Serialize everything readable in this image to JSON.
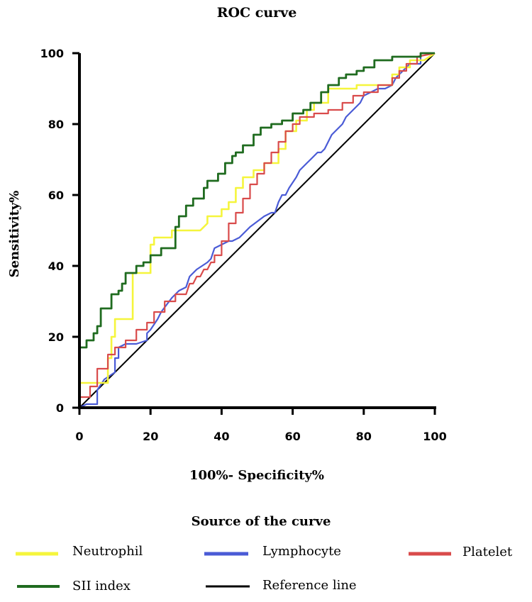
{
  "chart_data": {
    "type": "line",
    "title": "ROC curve",
    "xlabel": "100%- Specificity%",
    "ylabel": "Sensitivity%",
    "xlim": [
      0,
      100
    ],
    "ylim": [
      0,
      100
    ],
    "x_ticks": [
      "0",
      "20",
      "40",
      "60",
      "80",
      "100"
    ],
    "y_ticks": [
      "0",
      "20",
      "40",
      "60",
      "80",
      "100"
    ],
    "grid": false,
    "legend_title": "Source of the curve",
    "legend_position": "bottom",
    "series": [
      {
        "name": "Neutrophil",
        "color": "#f5f53c",
        "x": [
          0,
          0,
          3,
          8,
          8,
          9,
          9,
          10,
          10,
          15,
          15,
          20,
          20,
          21,
          21,
          26,
          26,
          34,
          36,
          36,
          40,
          40,
          42,
          42,
          44,
          44,
          46,
          46,
          49,
          49,
          52,
          52,
          56,
          56,
          58,
          58,
          61,
          61,
          64,
          64,
          66,
          66,
          70,
          70,
          78,
          78,
          84,
          88,
          88,
          90,
          90,
          93,
          93,
          97,
          100
        ],
        "y": [
          0,
          7,
          7,
          7,
          14,
          14,
          20,
          20,
          25,
          25,
          38,
          38,
          46,
          46,
          48,
          48,
          50,
          50,
          52,
          54,
          54,
          56,
          56,
          58,
          58,
          62,
          62,
          65,
          65,
          67,
          67,
          69,
          69,
          73,
          73,
          78,
          78,
          81,
          81,
          84,
          84,
          86,
          86,
          90,
          90,
          91,
          91,
          91,
          94,
          94,
          96,
          96,
          98,
          98,
          100
        ]
      },
      {
        "name": "Lymphocyte",
        "color": "#4a5bd6",
        "x": [
          0,
          2,
          4,
          4,
          5,
          5,
          7,
          10,
          10,
          11,
          11,
          13,
          16,
          16,
          19,
          19,
          20,
          22,
          23,
          26,
          28,
          30,
          31,
          33,
          36,
          37,
          38,
          42,
          43,
          45,
          46,
          47,
          48,
          52,
          54,
          55,
          56,
          57,
          58,
          59,
          61,
          62,
          63,
          64,
          65,
          66,
          67,
          68,
          69,
          70,
          71,
          72,
          73,
          74,
          75,
          76,
          77,
          79,
          80,
          82,
          84,
          86,
          88,
          89,
          91,
          93,
          96,
          96,
          100
        ],
        "y": [
          0,
          1,
          1,
          1,
          1,
          5,
          8,
          10,
          14,
          14,
          17,
          18,
          18,
          18,
          19,
          21,
          22,
          25,
          27,
          31,
          33,
          34,
          37,
          39,
          41,
          42,
          45,
          47,
          47,
          48,
          49,
          50,
          51,
          54,
          55,
          55,
          58,
          60,
          60,
          62,
          65,
          67,
          68,
          69,
          70,
          71,
          72,
          72,
          73,
          75,
          77,
          78,
          79,
          80,
          82,
          83,
          84,
          86,
          88,
          89,
          90,
          90,
          91,
          93,
          95,
          97,
          97,
          100,
          100
        ]
      },
      {
        "name": "Platelet",
        "color": "#d94b4b",
        "x": [
          0,
          0,
          3,
          3,
          5,
          5,
          8,
          8,
          10,
          10,
          13,
          13,
          16,
          16,
          19,
          19,
          21,
          21,
          24,
          24,
          27,
          27,
          30,
          31,
          32,
          33,
          34,
          35,
          36,
          37,
          38,
          38,
          40,
          40,
          42,
          42,
          44,
          44,
          46,
          46,
          48,
          48,
          50,
          50,
          52,
          52,
          54,
          54,
          56,
          56,
          58,
          58,
          60,
          60,
          62,
          62,
          66,
          66,
          70,
          70,
          74,
          74,
          77,
          77,
          80,
          80,
          84,
          84,
          88,
          88,
          90,
          90,
          92,
          92,
          95,
          95,
          100
        ],
        "y": [
          0,
          3,
          3,
          6,
          6,
          11,
          11,
          15,
          15,
          17,
          17,
          19,
          19,
          22,
          22,
          24,
          24,
          27,
          27,
          30,
          30,
          32,
          32,
          35,
          35,
          37,
          37,
          39,
          39,
          41,
          41,
          43,
          43,
          47,
          47,
          52,
          52,
          55,
          55,
          59,
          59,
          63,
          63,
          66,
          66,
          69,
          69,
          72,
          72,
          75,
          75,
          78,
          78,
          80,
          80,
          82,
          82,
          83,
          83,
          84,
          84,
          86,
          86,
          88,
          88,
          89,
          89,
          91,
          91,
          93,
          93,
          95,
          95,
          97,
          97,
          99,
          100
        ]
      },
      {
        "name": "SII index",
        "color": "#1f6b1f",
        "x": [
          0,
          0,
          2,
          2,
          4,
          4,
          5,
          5,
          6,
          6,
          9,
          9,
          11,
          11,
          12,
          12,
          13,
          13,
          16,
          16,
          18,
          18,
          20,
          20,
          23,
          23,
          27,
          27,
          28,
          28,
          30,
          30,
          32,
          32,
          35,
          35,
          36,
          36,
          39,
          39,
          41,
          41,
          43,
          43,
          44,
          44,
          46,
          46,
          49,
          49,
          51,
          51,
          54,
          54,
          57,
          57,
          60,
          60,
          63,
          63,
          65,
          65,
          68,
          68,
          70,
          70,
          73,
          73,
          75,
          75,
          78,
          78,
          80,
          80,
          83,
          83,
          88,
          88,
          93,
          93,
          96,
          96,
          100
        ],
        "y": [
          0,
          17,
          17,
          19,
          19,
          21,
          21,
          23,
          23,
          28,
          28,
          32,
          32,
          33,
          33,
          35,
          35,
          38,
          38,
          40,
          40,
          41,
          41,
          43,
          43,
          45,
          45,
          51,
          51,
          54,
          54,
          57,
          57,
          59,
          59,
          62,
          62,
          64,
          64,
          66,
          66,
          69,
          69,
          71,
          71,
          72,
          72,
          74,
          74,
          77,
          77,
          79,
          79,
          80,
          80,
          81,
          81,
          83,
          83,
          84,
          84,
          86,
          86,
          89,
          89,
          91,
          91,
          93,
          93,
          94,
          94,
          95,
          95,
          96,
          96,
          98,
          98,
          99,
          99,
          99,
          99,
          100,
          100
        ]
      },
      {
        "name": "Reference line",
        "color": "#000000",
        "x": [
          0,
          100
        ],
        "y": [
          0,
          100
        ]
      }
    ]
  }
}
